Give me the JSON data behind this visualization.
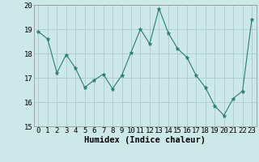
{
  "x": [
    0,
    1,
    2,
    3,
    4,
    5,
    6,
    7,
    8,
    9,
    10,
    11,
    12,
    13,
    14,
    15,
    16,
    17,
    18,
    19,
    20,
    21,
    22,
    23
  ],
  "y": [
    18.9,
    18.6,
    17.2,
    17.95,
    17.4,
    16.6,
    16.9,
    17.15,
    16.55,
    17.1,
    18.05,
    19.0,
    18.4,
    19.85,
    18.85,
    18.2,
    17.85,
    17.1,
    16.6,
    15.85,
    15.45,
    16.15,
    16.45,
    19.4
  ],
  "line_color": "#2e7d6e",
  "marker": "*",
  "marker_size": 3.5,
  "bg_color": "#cce8e8",
  "grid_color": "#aacccc",
  "xlabel": "Humidex (Indice chaleur)",
  "ylim": [
    15,
    20
  ],
  "xlim": [
    -0.5,
    23.5
  ],
  "yticks": [
    15,
    16,
    17,
    18,
    19,
    20
  ],
  "xticks": [
    0,
    1,
    2,
    3,
    4,
    5,
    6,
    7,
    8,
    9,
    10,
    11,
    12,
    13,
    14,
    15,
    16,
    17,
    18,
    19,
    20,
    21,
    22,
    23
  ],
  "xlabel_fontsize": 7.5,
  "tick_fontsize": 6.5
}
